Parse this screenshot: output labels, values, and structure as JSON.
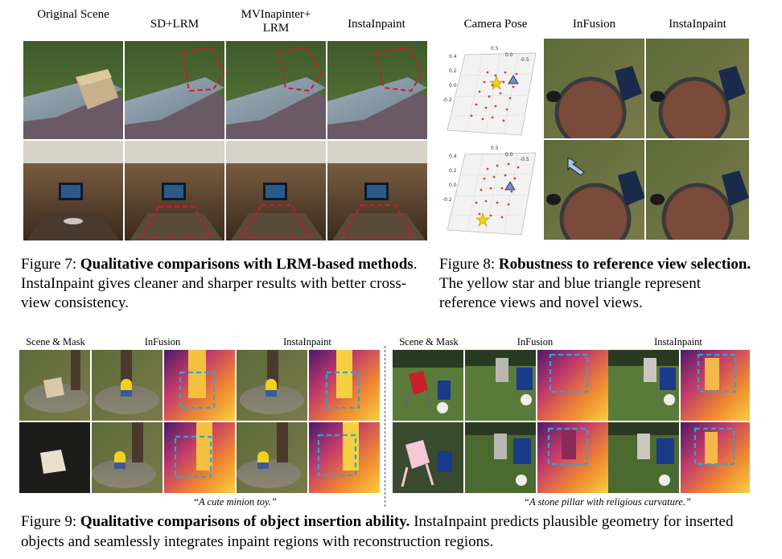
{
  "fig7": {
    "headers": [
      "Original Scene",
      "SD+LRM",
      "MVInapinter+ LRM",
      "InstaInpaint"
    ],
    "caption_label": "Figure 7: ",
    "caption_bold": "Qualitative comparisons with LRM-based methods",
    "caption_rest": ". InstaInpaint gives cleaner and sharper results with better cross-view consistency."
  },
  "fig8": {
    "headers": [
      "Camera Pose",
      "InFusion",
      "InstaInpaint"
    ],
    "plot_ticks_top": [
      "0.5",
      "0.0",
      "-0.5"
    ],
    "plot_ticks_left": [
      "0.4",
      "0.2",
      "0.0",
      "-0.2"
    ],
    "caption_label": "Figure 8: ",
    "caption_bold": "Robustness to reference view selection.",
    "caption_rest": " The yellow star and blue triangle represent reference views and novel views."
  },
  "fig9": {
    "left_headers": [
      "Scene & Mask",
      "InFusion",
      "InstaInpaint"
    ],
    "right_headers": [
      "Scene & Mask",
      "InFusion",
      "InstaInpaint"
    ],
    "left_quote": "“A cute minion toy.”",
    "right_quote": "“A stone pillar with religious curvature.”",
    "caption_label": "Figure 9: ",
    "caption_bold": "Qualitative comparisons of object insertion ability.",
    "caption_rest": " InstaInpaint predicts plausible geometry for inserted objects and seamlessly integrates inpaint regions with reconstruction regions."
  },
  "colors": {
    "mask_red": "#d0182a",
    "box_blue": "#2aa6d8",
    "star": "#f5d20a",
    "triangle": "#6f8fd8"
  }
}
